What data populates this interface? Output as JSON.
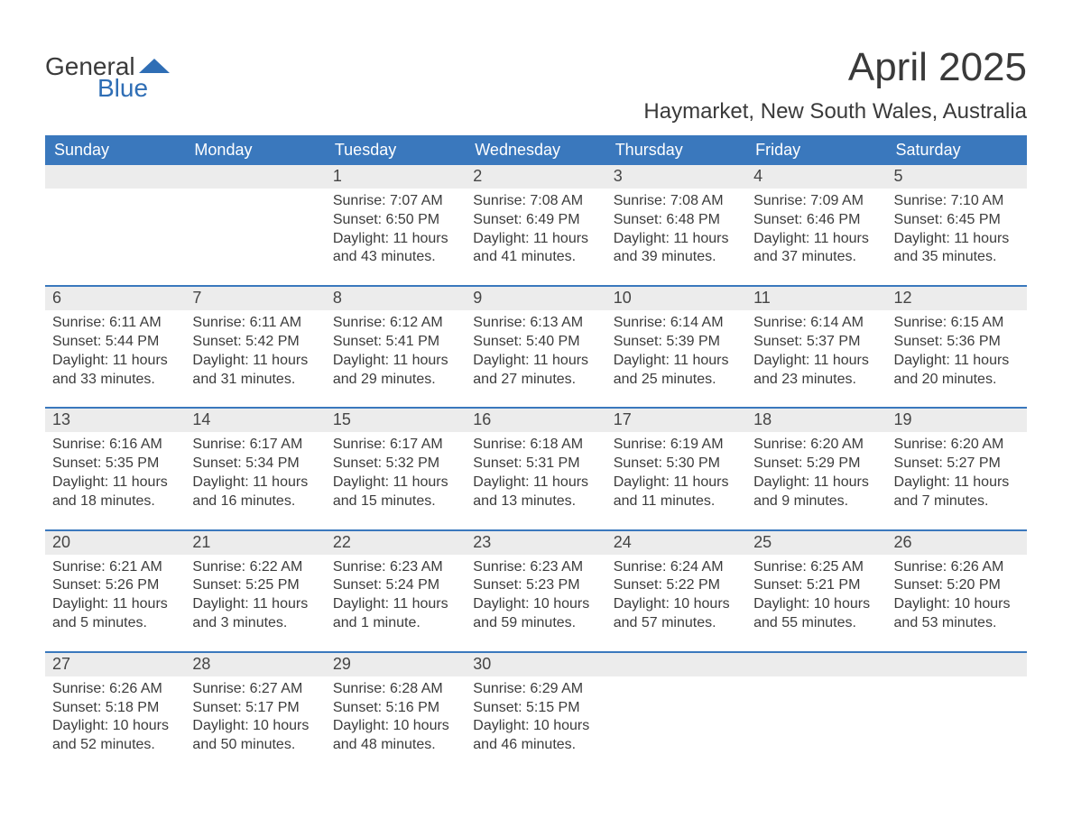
{
  "logo": {
    "text1": "General",
    "text2": "Blue",
    "shape_color": "#2f6eb5"
  },
  "title": "April 2025",
  "location": "Haymarket, New South Wales, Australia",
  "colors": {
    "header_bg": "#3a78bd",
    "header_text": "#ffffff",
    "daynum_bg": "#ececec",
    "border": "#3a78bd",
    "text": "#3a3a3a"
  },
  "day_names": [
    "Sunday",
    "Monday",
    "Tuesday",
    "Wednesday",
    "Thursday",
    "Friday",
    "Saturday"
  ],
  "weeks": [
    [
      {
        "n": "",
        "sr": "",
        "ss": "",
        "dl": ""
      },
      {
        "n": "",
        "sr": "",
        "ss": "",
        "dl": ""
      },
      {
        "n": "1",
        "sr": "Sunrise: 7:07 AM",
        "ss": "Sunset: 6:50 PM",
        "dl": "Daylight: 11 hours and 43 minutes."
      },
      {
        "n": "2",
        "sr": "Sunrise: 7:08 AM",
        "ss": "Sunset: 6:49 PM",
        "dl": "Daylight: 11 hours and 41 minutes."
      },
      {
        "n": "3",
        "sr": "Sunrise: 7:08 AM",
        "ss": "Sunset: 6:48 PM",
        "dl": "Daylight: 11 hours and 39 minutes."
      },
      {
        "n": "4",
        "sr": "Sunrise: 7:09 AM",
        "ss": "Sunset: 6:46 PM",
        "dl": "Daylight: 11 hours and 37 minutes."
      },
      {
        "n": "5",
        "sr": "Sunrise: 7:10 AM",
        "ss": "Sunset: 6:45 PM",
        "dl": "Daylight: 11 hours and 35 minutes."
      }
    ],
    [
      {
        "n": "6",
        "sr": "Sunrise: 6:11 AM",
        "ss": "Sunset: 5:44 PM",
        "dl": "Daylight: 11 hours and 33 minutes."
      },
      {
        "n": "7",
        "sr": "Sunrise: 6:11 AM",
        "ss": "Sunset: 5:42 PM",
        "dl": "Daylight: 11 hours and 31 minutes."
      },
      {
        "n": "8",
        "sr": "Sunrise: 6:12 AM",
        "ss": "Sunset: 5:41 PM",
        "dl": "Daylight: 11 hours and 29 minutes."
      },
      {
        "n": "9",
        "sr": "Sunrise: 6:13 AM",
        "ss": "Sunset: 5:40 PM",
        "dl": "Daylight: 11 hours and 27 minutes."
      },
      {
        "n": "10",
        "sr": "Sunrise: 6:14 AM",
        "ss": "Sunset: 5:39 PM",
        "dl": "Daylight: 11 hours and 25 minutes."
      },
      {
        "n": "11",
        "sr": "Sunrise: 6:14 AM",
        "ss": "Sunset: 5:37 PM",
        "dl": "Daylight: 11 hours and 23 minutes."
      },
      {
        "n": "12",
        "sr": "Sunrise: 6:15 AM",
        "ss": "Sunset: 5:36 PM",
        "dl": "Daylight: 11 hours and 20 minutes."
      }
    ],
    [
      {
        "n": "13",
        "sr": "Sunrise: 6:16 AM",
        "ss": "Sunset: 5:35 PM",
        "dl": "Daylight: 11 hours and 18 minutes."
      },
      {
        "n": "14",
        "sr": "Sunrise: 6:17 AM",
        "ss": "Sunset: 5:34 PM",
        "dl": "Daylight: 11 hours and 16 minutes."
      },
      {
        "n": "15",
        "sr": "Sunrise: 6:17 AM",
        "ss": "Sunset: 5:32 PM",
        "dl": "Daylight: 11 hours and 15 minutes."
      },
      {
        "n": "16",
        "sr": "Sunrise: 6:18 AM",
        "ss": "Sunset: 5:31 PM",
        "dl": "Daylight: 11 hours and 13 minutes."
      },
      {
        "n": "17",
        "sr": "Sunrise: 6:19 AM",
        "ss": "Sunset: 5:30 PM",
        "dl": "Daylight: 11 hours and 11 minutes."
      },
      {
        "n": "18",
        "sr": "Sunrise: 6:20 AM",
        "ss": "Sunset: 5:29 PM",
        "dl": "Daylight: 11 hours and 9 minutes."
      },
      {
        "n": "19",
        "sr": "Sunrise: 6:20 AM",
        "ss": "Sunset: 5:27 PM",
        "dl": "Daylight: 11 hours and 7 minutes."
      }
    ],
    [
      {
        "n": "20",
        "sr": "Sunrise: 6:21 AM",
        "ss": "Sunset: 5:26 PM",
        "dl": "Daylight: 11 hours and 5 minutes."
      },
      {
        "n": "21",
        "sr": "Sunrise: 6:22 AM",
        "ss": "Sunset: 5:25 PM",
        "dl": "Daylight: 11 hours and 3 minutes."
      },
      {
        "n": "22",
        "sr": "Sunrise: 6:23 AM",
        "ss": "Sunset: 5:24 PM",
        "dl": "Daylight: 11 hours and 1 minute."
      },
      {
        "n": "23",
        "sr": "Sunrise: 6:23 AM",
        "ss": "Sunset: 5:23 PM",
        "dl": "Daylight: 10 hours and 59 minutes."
      },
      {
        "n": "24",
        "sr": "Sunrise: 6:24 AM",
        "ss": "Sunset: 5:22 PM",
        "dl": "Daylight: 10 hours and 57 minutes."
      },
      {
        "n": "25",
        "sr": "Sunrise: 6:25 AM",
        "ss": "Sunset: 5:21 PM",
        "dl": "Daylight: 10 hours and 55 minutes."
      },
      {
        "n": "26",
        "sr": "Sunrise: 6:26 AM",
        "ss": "Sunset: 5:20 PM",
        "dl": "Daylight: 10 hours and 53 minutes."
      }
    ],
    [
      {
        "n": "27",
        "sr": "Sunrise: 6:26 AM",
        "ss": "Sunset: 5:18 PM",
        "dl": "Daylight: 10 hours and 52 minutes."
      },
      {
        "n": "28",
        "sr": "Sunrise: 6:27 AM",
        "ss": "Sunset: 5:17 PM",
        "dl": "Daylight: 10 hours and 50 minutes."
      },
      {
        "n": "29",
        "sr": "Sunrise: 6:28 AM",
        "ss": "Sunset: 5:16 PM",
        "dl": "Daylight: 10 hours and 48 minutes."
      },
      {
        "n": "30",
        "sr": "Sunrise: 6:29 AM",
        "ss": "Sunset: 5:15 PM",
        "dl": "Daylight: 10 hours and 46 minutes."
      },
      {
        "n": "",
        "sr": "",
        "ss": "",
        "dl": ""
      },
      {
        "n": "",
        "sr": "",
        "ss": "",
        "dl": ""
      },
      {
        "n": "",
        "sr": "",
        "ss": "",
        "dl": ""
      }
    ]
  ]
}
